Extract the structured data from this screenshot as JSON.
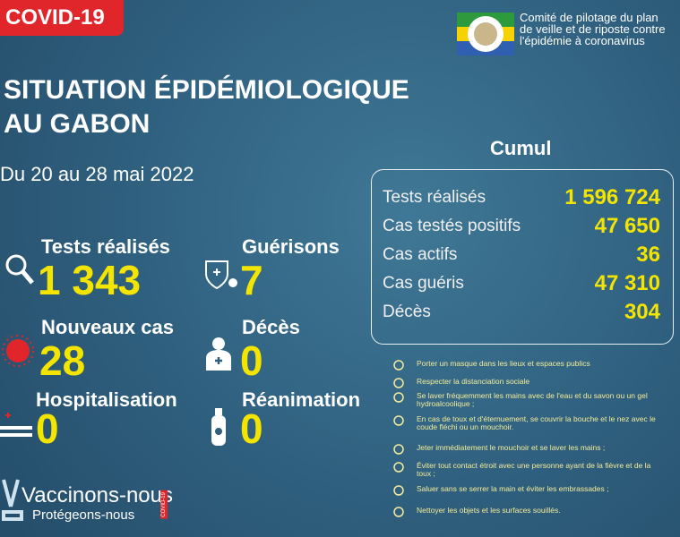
{
  "header": {
    "badge": "COVID-19",
    "committee": [
      "Comité de pilotage du plan",
      "de veille et de riposte contre",
      "l'épidémie à coronavirus"
    ],
    "title": [
      "SITUATION ÉPIDÉMIOLOGIQUE",
      "AU GABON"
    ],
    "period": "Du 20 au 28 mai  2022"
  },
  "stats": [
    {
      "label": "Tests réalisés",
      "value": "1 343"
    },
    {
      "label": "Guérisons",
      "value": "7"
    },
    {
      "label": "Nouveaux cas",
      "value": "28"
    },
    {
      "label": "Décès",
      "value": "0"
    },
    {
      "label": "Hospitalisation",
      "value": "0"
    },
    {
      "label": "Réanimation",
      "value": "0"
    }
  ],
  "cumul": {
    "title": "Cumul",
    "rows": [
      [
        "Tests réalisés",
        "1 596 724"
      ],
      [
        "Cas testés positifs",
        "47 650"
      ],
      [
        "Cas actifs",
        "36"
      ],
      [
        "Cas guéris",
        "47 310"
      ],
      [
        "Décès",
        "304"
      ]
    ]
  },
  "advice": [
    "Porter un masque dans les lieux et espaces publics",
    "Respecter la distanciation sociale",
    "Se laver fréquemment les mains avec de l'eau et du savon ou un gel hydroalcoolique ;",
    "En cas de toux et d'éternuement, se couvrir la bouche et le nez avec le coude fléchi ou un mouchoir.",
    "Jeter immédiatement le mouchoir et se laver les mains ;",
    "Éviter tout contact étroit avec une personne ayant de la fièvre et de la toux ;",
    "Saluer sans se serrer la main et éviter les embrassades ;",
    "Nettoyer les objets et les surfaces souillés."
  ],
  "footer": {
    "line1": "Vaccinons-nous",
    "line2": "Protégeons-nous",
    "tag": "COVID-19"
  }
}
